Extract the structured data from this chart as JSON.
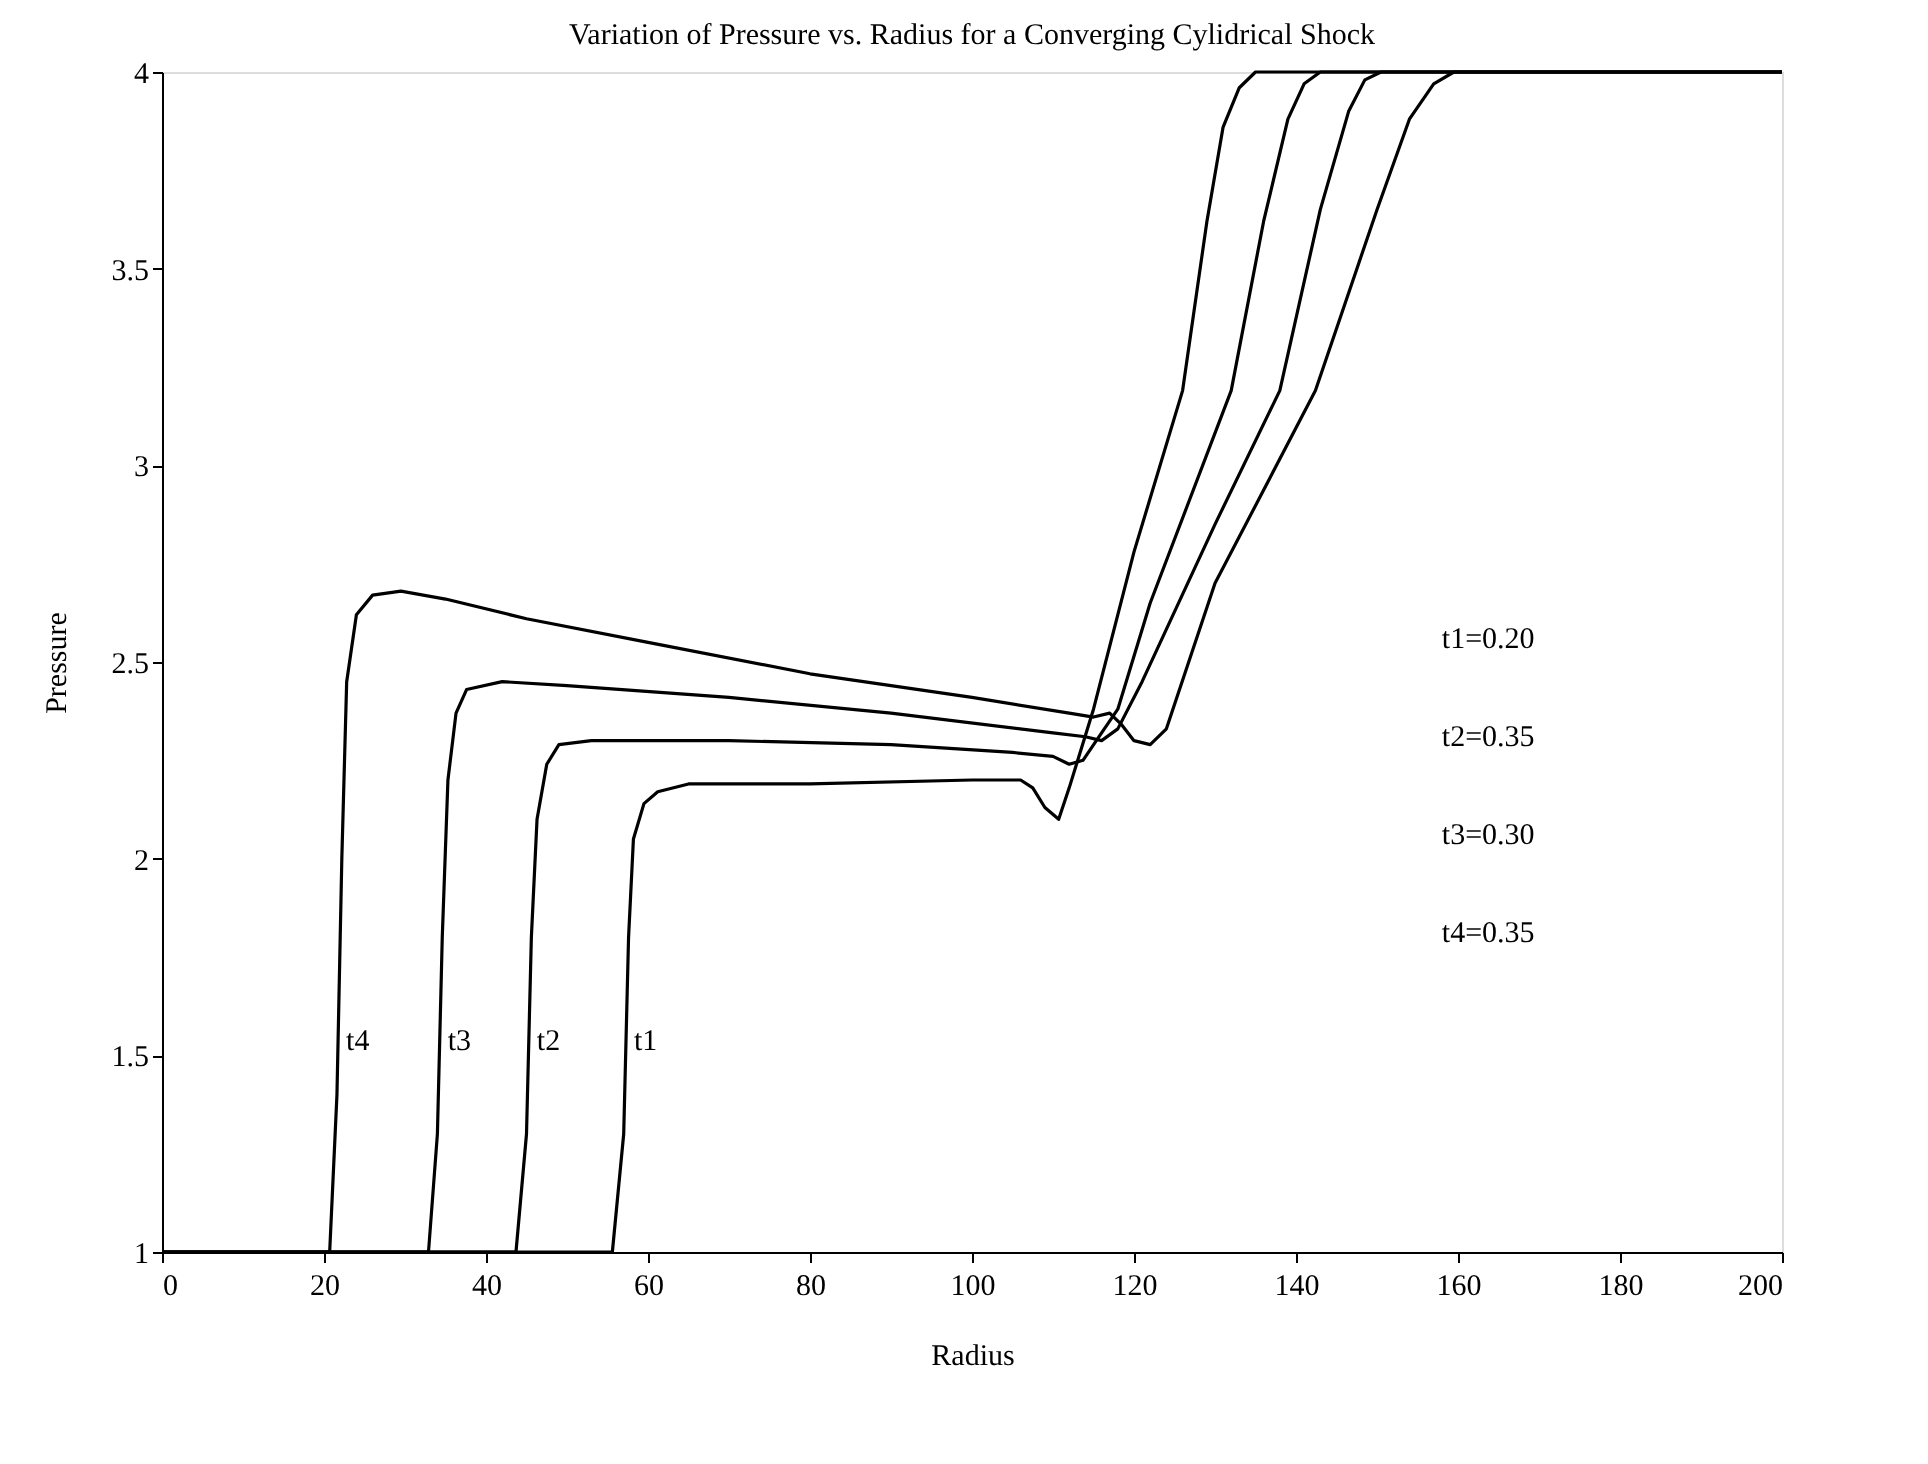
{
  "chart_data": {
    "type": "line",
    "title": "Variation of Pressure vs. Radius for a Converging Cylidrical Shock",
    "xlabel": "Radius",
    "ylabel": "Pressure",
    "xlim": [
      0,
      200
    ],
    "xticks": [
      0,
      20,
      40,
      60,
      80,
      100,
      120,
      140,
      160,
      180,
      200
    ],
    "ylim": [
      1,
      4
    ],
    "yticks": [
      1,
      1.5,
      2,
      2.5,
      3,
      3.5,
      4
    ],
    "grid": false,
    "marker": "none",
    "line_style": "solid",
    "series": [
      {
        "name": "t1",
        "color": "#000000",
        "x": [
          0,
          55.6,
          57,
          57.6,
          58.2,
          59.5,
          61.2,
          65,
          80,
          100,
          106,
          107.5,
          109,
          110.7,
          112,
          115,
          120,
          126,
          129,
          131,
          133,
          135,
          200
        ],
        "values": [
          1,
          1,
          1.3,
          1.8,
          2.05,
          2.14,
          2.17,
          2.19,
          2.19,
          2.2,
          2.2,
          2.18,
          2.13,
          2.1,
          2.18,
          2.38,
          2.78,
          3.19,
          3.62,
          3.86,
          3.96,
          4,
          4
        ]
      },
      {
        "name": "t2",
        "color": "#000000",
        "x": [
          0,
          43.7,
          45,
          45.6,
          46.3,
          47.5,
          49,
          53,
          70,
          90,
          105,
          110,
          112,
          113.7,
          116,
          118,
          122,
          132,
          136,
          139,
          141,
          143,
          200
        ],
        "values": [
          1,
          1,
          1.3,
          1.8,
          2.1,
          2.24,
          2.29,
          2.3,
          2.3,
          2.29,
          2.27,
          2.26,
          2.24,
          2.25,
          2.32,
          2.38,
          2.65,
          3.19,
          3.62,
          3.88,
          3.97,
          4,
          4
        ]
      },
      {
        "name": "t3",
        "color": "#000000",
        "x": [
          0,
          32.9,
          34,
          34.6,
          35.3,
          36.3,
          37.6,
          42,
          50,
          70,
          90,
          110,
          114,
          116,
          118,
          121,
          130,
          138,
          143,
          146.5,
          148.5,
          150.5,
          200
        ],
        "values": [
          1,
          1,
          1.3,
          1.8,
          2.2,
          2.37,
          2.43,
          2.45,
          2.44,
          2.41,
          2.37,
          2.32,
          2.31,
          2.3,
          2.33,
          2.45,
          2.85,
          3.19,
          3.65,
          3.9,
          3.98,
          4,
          4
        ]
      },
      {
        "name": "t4",
        "color": "#000000",
        "x": [
          0,
          20.7,
          21.6,
          22.2,
          22.8,
          24,
          26,
          29.5,
          35,
          45,
          60,
          80,
          100,
          112,
          115,
          117,
          118.5,
          120,
          122,
          124,
          130,
          142.4,
          150,
          154,
          157,
          159.5,
          200
        ],
        "values": [
          1,
          1,
          1.4,
          2.0,
          2.45,
          2.62,
          2.67,
          2.68,
          2.66,
          2.61,
          2.55,
          2.47,
          2.41,
          2.37,
          2.36,
          2.37,
          2.34,
          2.3,
          2.29,
          2.33,
          2.7,
          3.19,
          3.65,
          3.88,
          3.97,
          4,
          4
        ]
      }
    ],
    "annotations": [
      "t1=0.20",
      "t2=0.35",
      "t3=0.30",
      "t4=0.35"
    ]
  }
}
